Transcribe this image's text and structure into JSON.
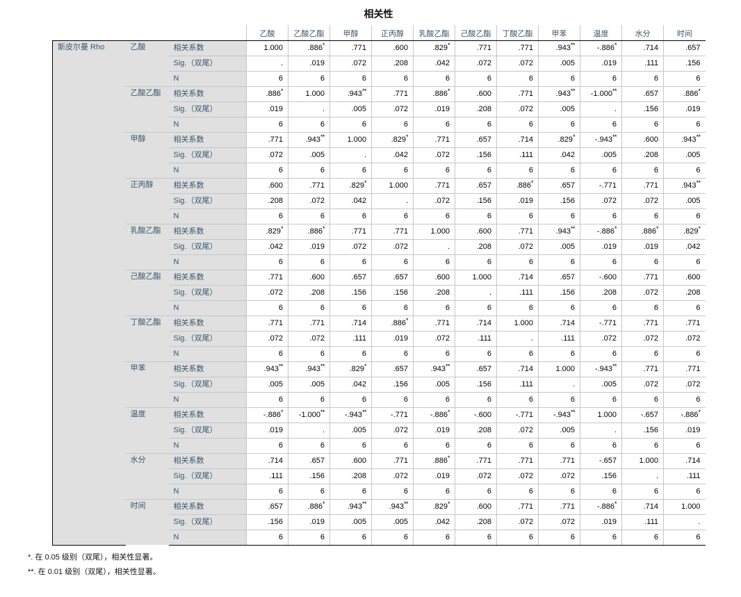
{
  "title": "相关性",
  "row_dimension_label": "斯皮尔曼 Rho",
  "stat_labels": [
    "相关系数",
    "Sig.（双尾）",
    "N"
  ],
  "columns": [
    "乙酸",
    "乙酸乙酯",
    "甲醇",
    "正丙醇",
    "乳酸乙酯",
    "己酸乙酯",
    "丁酸乙酯",
    "甲苯",
    "温度",
    "水分",
    "时间"
  ],
  "variables": [
    {
      "name": "乙酸",
      "corr": [
        "1.000",
        ".886*",
        ".771",
        ".600",
        ".829*",
        ".771",
        ".771",
        ".943**",
        "-.886*",
        ".714",
        ".657"
      ],
      "sig": [
        ".",
        ".019",
        ".072",
        ".208",
        ".042",
        ".072",
        ".072",
        ".005",
        ".019",
        ".111",
        ".156"
      ],
      "n": [
        "6",
        "6",
        "6",
        "6",
        "6",
        "6",
        "6",
        "6",
        "6",
        "6",
        "6"
      ]
    },
    {
      "name": "乙酸乙酯",
      "corr": [
        ".886*",
        "1.000",
        ".943**",
        ".771",
        ".886*",
        ".600",
        ".771",
        ".943**",
        "-1.000**",
        ".657",
        ".886*"
      ],
      "sig": [
        ".019",
        ".",
        ".005",
        ".072",
        ".019",
        ".208",
        ".072",
        ".005",
        ".",
        ".156",
        ".019"
      ],
      "n": [
        "6",
        "6",
        "6",
        "6",
        "6",
        "6",
        "6",
        "6",
        "6",
        "6",
        "6"
      ]
    },
    {
      "name": "甲醇",
      "corr": [
        ".771",
        ".943**",
        "1.000",
        ".829*",
        ".771",
        ".657",
        ".714",
        ".829*",
        "-.943**",
        ".600",
        ".943**"
      ],
      "sig": [
        ".072",
        ".005",
        ".",
        ".042",
        ".072",
        ".156",
        ".111",
        ".042",
        ".005",
        ".208",
        ".005"
      ],
      "n": [
        "6",
        "6",
        "6",
        "6",
        "6",
        "6",
        "6",
        "6",
        "6",
        "6",
        "6"
      ]
    },
    {
      "name": "正丙醇",
      "corr": [
        ".600",
        ".771",
        ".829*",
        "1.000",
        ".771",
        ".657",
        ".886*",
        ".657",
        "-.771",
        ".771",
        ".943**"
      ],
      "sig": [
        ".208",
        ".072",
        ".042",
        ".",
        ".072",
        ".156",
        ".019",
        ".156",
        ".072",
        ".072",
        ".005"
      ],
      "n": [
        "6",
        "6",
        "6",
        "6",
        "6",
        "6",
        "6",
        "6",
        "6",
        "6",
        "6"
      ]
    },
    {
      "name": "乳酸乙酯",
      "corr": [
        ".829*",
        ".886*",
        ".771",
        ".771",
        "1.000",
        ".600",
        ".771",
        ".943**",
        "-.886*",
        ".886*",
        ".829*"
      ],
      "sig": [
        ".042",
        ".019",
        ".072",
        ".072",
        ".",
        ".208",
        ".072",
        ".005",
        ".019",
        ".019",
        ".042"
      ],
      "n": [
        "6",
        "6",
        "6",
        "6",
        "6",
        "6",
        "6",
        "6",
        "6",
        "6",
        "6"
      ]
    },
    {
      "name": "己酸乙酯",
      "corr": [
        ".771",
        ".600",
        ".657",
        ".657",
        ".600",
        "1.000",
        ".714",
        ".657",
        "-.600",
        ".771",
        ".600"
      ],
      "sig": [
        ".072",
        ".208",
        ".156",
        ".156",
        ".208",
        ".",
        ".111",
        ".156",
        ".208",
        ".072",
        ".208"
      ],
      "n": [
        "6",
        "6",
        "6",
        "6",
        "6",
        "6",
        "6",
        "6",
        "6",
        "6",
        "6"
      ]
    },
    {
      "name": "丁酸乙酯",
      "corr": [
        ".771",
        ".771",
        ".714",
        ".886*",
        ".771",
        ".714",
        "1.000",
        ".714",
        "-.771",
        ".771",
        ".771"
      ],
      "sig": [
        ".072",
        ".072",
        ".111",
        ".019",
        ".072",
        ".111",
        ".",
        ".111",
        ".072",
        ".072",
        ".072"
      ],
      "n": [
        "6",
        "6",
        "6",
        "6",
        "6",
        "6",
        "6",
        "6",
        "6",
        "6",
        "6"
      ]
    },
    {
      "name": "甲苯",
      "corr": [
        ".943**",
        ".943**",
        ".829*",
        ".657",
        ".943**",
        ".657",
        ".714",
        "1.000",
        "-.943**",
        ".771",
        ".771"
      ],
      "sig": [
        ".005",
        ".005",
        ".042",
        ".156",
        ".005",
        ".156",
        ".111",
        ".",
        ".005",
        ".072",
        ".072"
      ],
      "n": [
        "6",
        "6",
        "6",
        "6",
        "6",
        "6",
        "6",
        "6",
        "6",
        "6",
        "6"
      ]
    },
    {
      "name": "温度",
      "corr": [
        "-.886*",
        "-1.000**",
        "-.943**",
        "-.771",
        "-.886*",
        "-.600",
        "-.771",
        "-.943**",
        "1.000",
        "-.657",
        "-.886*"
      ],
      "sig": [
        ".019",
        ".",
        ".005",
        ".072",
        ".019",
        ".208",
        ".072",
        ".005",
        ".",
        ".156",
        ".019"
      ],
      "n": [
        "6",
        "6",
        "6",
        "6",
        "6",
        "6",
        "6",
        "6",
        "6",
        "6",
        "6"
      ]
    },
    {
      "name": "水分",
      "corr": [
        ".714",
        ".657",
        ".600",
        ".771",
        ".886*",
        ".771",
        ".771",
        ".771",
        "-.657",
        "1.000",
        ".714"
      ],
      "sig": [
        ".111",
        ".156",
        ".208",
        ".072",
        ".019",
        ".072",
        ".072",
        ".072",
        ".156",
        ".",
        ".111"
      ],
      "n": [
        "6",
        "6",
        "6",
        "6",
        "6",
        "6",
        "6",
        "6",
        "6",
        "6",
        "6"
      ]
    },
    {
      "name": "时间",
      "corr": [
        ".657",
        ".886*",
        ".943**",
        ".943**",
        ".829*",
        ".600",
        ".771",
        ".771",
        "-.886*",
        ".714",
        "1.000"
      ],
      "sig": [
        ".156",
        ".019",
        ".005",
        ".005",
        ".042",
        ".208",
        ".072",
        ".072",
        ".019",
        ".111",
        "."
      ],
      "n": [
        "6",
        "6",
        "6",
        "6",
        "6",
        "6",
        "6",
        "6",
        "6",
        "6",
        "6"
      ]
    }
  ],
  "footnotes": [
    "*. 在 0.05 级别（双尾），相关性显著。",
    "**. 在 0.01 级别（双尾），相关性显著。"
  ],
  "colors": {
    "label_text": "#39576b",
    "stub_background": "#e0e0e0",
    "grid_line": "#c6c6c6",
    "dark_line": "#000000"
  }
}
